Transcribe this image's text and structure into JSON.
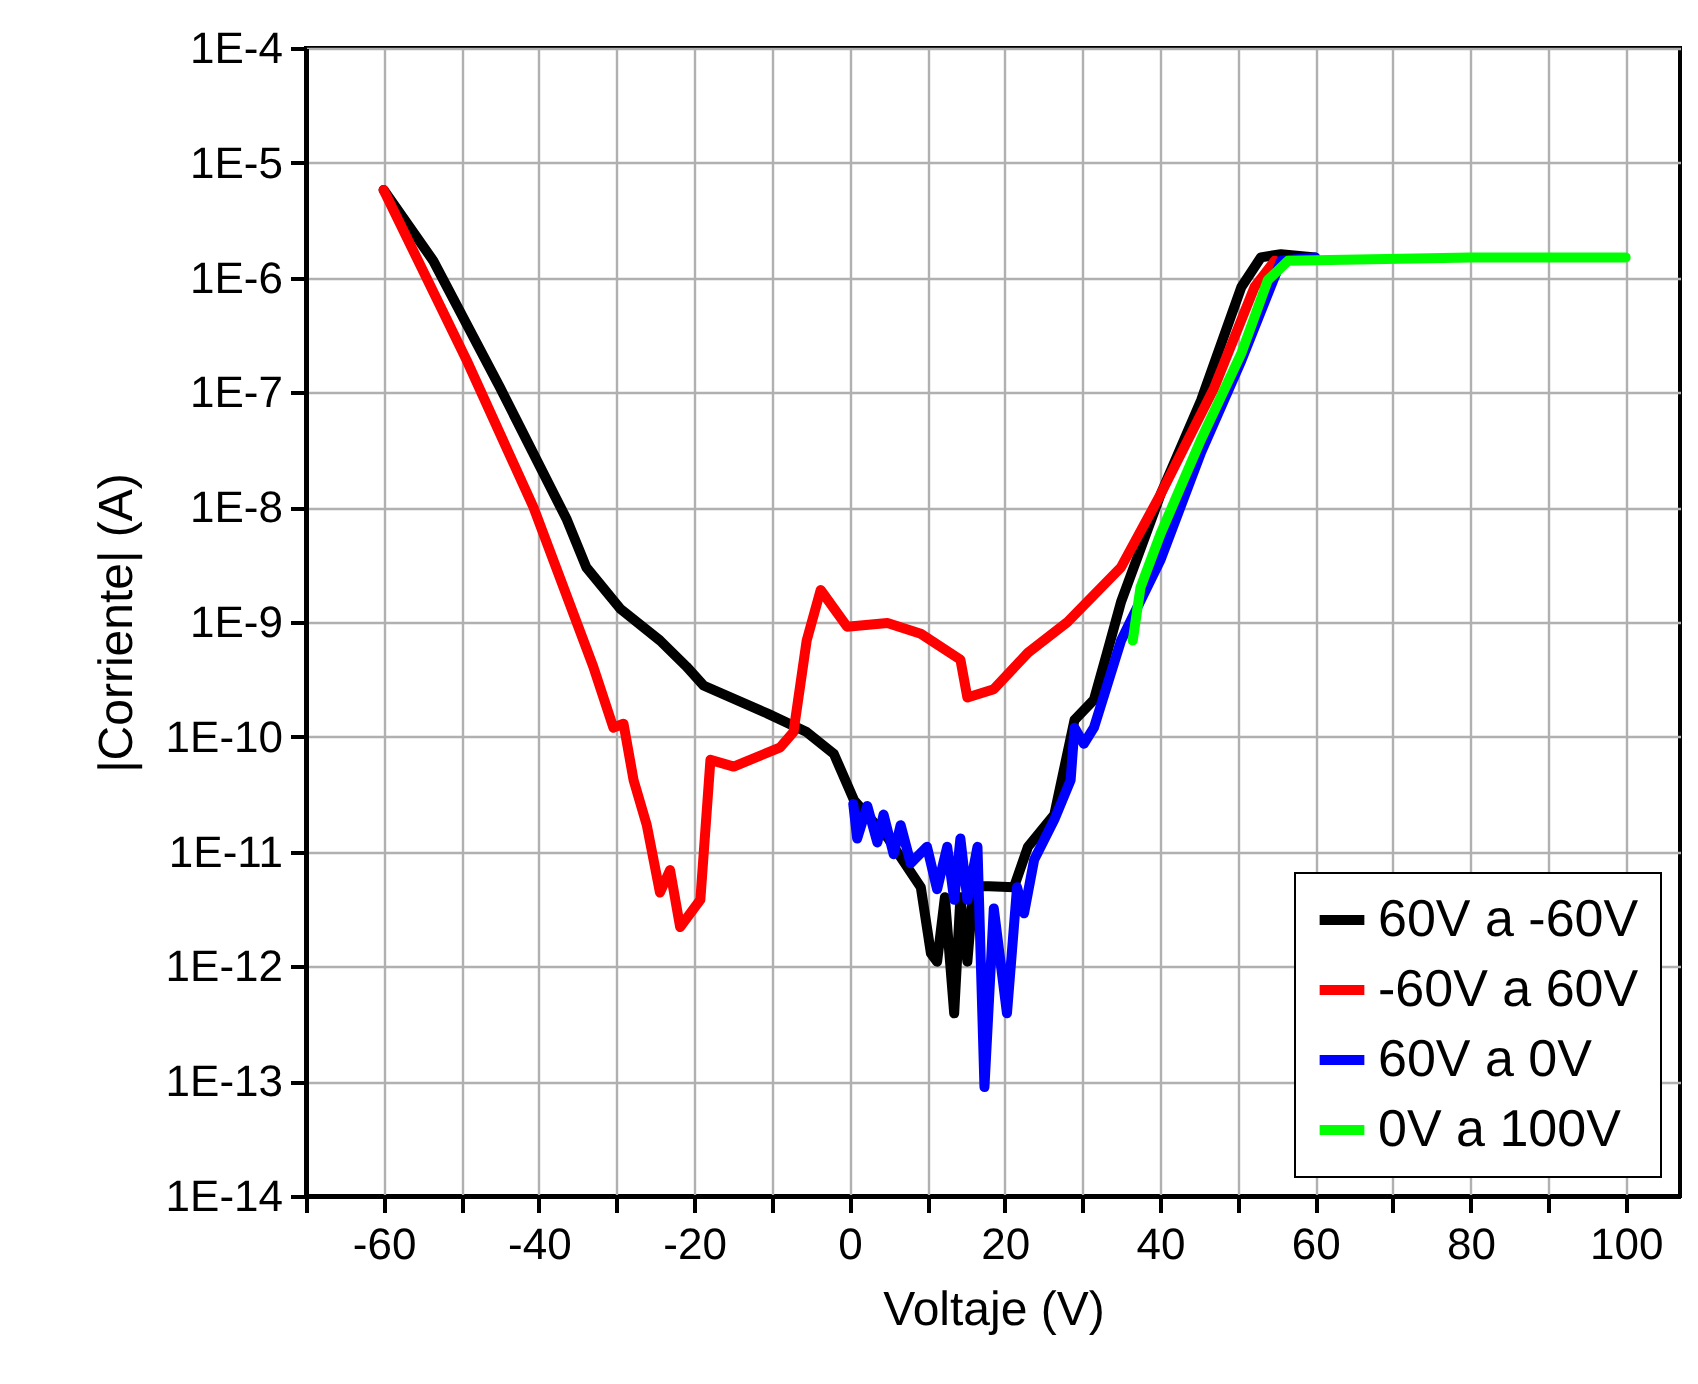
{
  "chart_data": {
    "type": "line",
    "xlabel": "Voltaje (V)",
    "ylabel": "|Corriente| (A)",
    "log": "y",
    "grid": true,
    "legend": "bottom right",
    "line_style": "solid",
    "marker": "none",
    "xlim": [
      -70,
      107
    ],
    "xticks": [
      {
        "value": -70,
        "label": null
      },
      -60,
      {
        "value": -50,
        "label": null
      },
      -40,
      {
        "value": -30,
        "label": null
      },
      -20,
      {
        "value": -10,
        "label": null
      },
      0,
      {
        "value": 10,
        "label": null
      },
      20,
      {
        "value": 30,
        "label": null
      },
      40,
      {
        "value": 50,
        "label": null
      },
      60,
      {
        "value": 70,
        "label": null
      },
      80,
      {
        "value": 90,
        "label": null
      },
      100
    ],
    "ylim": [
      1e-14,
      0.0001
    ],
    "yticks": [
      {
        "value": 1e-14,
        "label": "1E-14"
      },
      {
        "value": 1e-13,
        "label": "1E-13"
      },
      {
        "value": 1e-12,
        "label": "1E-12"
      },
      {
        "value": 1e-11,
        "label": "1E-11"
      },
      {
        "value": 1e-10,
        "label": "1E-10"
      },
      {
        "value": 1e-09,
        "label": "1E-9"
      },
      {
        "value": 1e-08,
        "label": "1E-8"
      },
      {
        "value": 1e-07,
        "label": "1E-7"
      },
      {
        "value": 1e-06,
        "label": "1E-6"
      },
      {
        "value": 1e-05,
        "label": "1E-5"
      },
      {
        "value": 0.0001,
        "label": "1E-4"
      }
    ],
    "series": [
      {
        "name": "60V a -60V",
        "color": "#000000",
        "x": [
          -60,
          -53.6,
          -45,
          -36.4,
          -33.9,
          -29.5,
          -24.4,
          -21,
          -18.8,
          -10.6,
          -5.5,
          -2,
          0.6,
          5,
          9.2,
          10.5,
          11.3,
          12.3,
          13.5,
          14.3,
          15.2,
          16,
          18,
          21.2,
          23,
          26.4,
          29,
          31.5,
          33.2,
          35,
          40.1,
          45.3,
          50.5,
          53,
          55.6,
          60
        ],
        "values": [
          5.8e-06,
          1.4e-06,
          1.1e-07,
          7.8e-09,
          3e-09,
          1.3e-09,
          6.9e-10,
          4.1e-10,
          2.8e-10,
          1.6e-10,
          1.1e-10,
          7.1e-11,
          2.8e-11,
          1.3e-11,
          4.9e-12,
          1.3e-12,
          1.1e-12,
          4e-12,
          3.9e-13,
          4e-12,
          1.1e-12,
          5e-12,
          5e-12,
          4.9e-12,
          1.1e-11,
          2.1e-11,
          1.4e-10,
          2.1e-10,
          5.4e-10,
          1.5e-09,
          1.3e-08,
          8.5e-08,
          8.3e-07,
          1.5e-06,
          1.6e-06,
          1.5e-06
        ]
      },
      {
        "name": "-60V a 60V",
        "color": "#ff0000",
        "x": [
          -60,
          -49.3,
          -40.7,
          -33,
          -30.4,
          -29.1,
          -27.8,
          -26.1,
          -24.4,
          -23.1,
          -21.8,
          -19.2,
          -17.9,
          -14.9,
          -8.9,
          -7.2,
          -5.5,
          -3.7,
          -0.3,
          4.9,
          9.2,
          14.3,
          15.2,
          18.6,
          23,
          28.1,
          35,
          40.1,
          47,
          52.2,
          54.8
        ],
        "values": [
          5.8e-06,
          1.9e-07,
          1e-08,
          4.1e-10,
          1.2e-10,
          1.3e-10,
          4.2e-11,
          1.7e-11,
          4.4e-12,
          6.9e-12,
          2.2e-12,
          3.8e-12,
          6.3e-11,
          5.5e-11,
          8.1e-11,
          1.1e-10,
          6.9e-10,
          1.9e-09,
          9.1e-10,
          9.8e-10,
          7.9e-10,
          4.7e-10,
          2.2e-10,
          2.6e-10,
          5.4e-10,
          1e-09,
          3e-09,
          1.3e-08,
          1.1e-07,
          8.3e-07,
          1.4e-06
        ]
      },
      {
        "name": "60V a 0V",
        "color": "#0000ff",
        "x": [
          0.5,
          1,
          2.3,
          3.6,
          4.4,
          5.7,
          6.6,
          7.9,
          10,
          11.3,
          12.6,
          13.5,
          14.3,
          15.2,
          16.5,
          17.4,
          18.6,
          20.3,
          21.6,
          22.5,
          23.8,
          26.4,
          28.5,
          29,
          30.2,
          31.5,
          35,
          40.1,
          45.3,
          50.5,
          55.6,
          60
        ],
        "values": [
          2.6e-11,
          1.3e-11,
          2.5e-11,
          1.2e-11,
          2.1e-11,
          9.5e-12,
          1.7e-11,
          7.9e-12,
          1.1e-11,
          4.7e-12,
          1.1e-11,
          3.8e-12,
          1.3e-11,
          3.8e-12,
          1.1e-11,
          8.9e-14,
          3.2e-12,
          3.9e-13,
          4.9e-12,
          2.9e-12,
          8.5e-12,
          1.9e-11,
          4.2e-11,
          1.2e-10,
          8.7e-11,
          1.2e-10,
          6.9e-10,
          3.5e-09,
          3e-08,
          1.9e-07,
          1.4e-06,
          1.5e-06
        ]
      },
      {
        "name": "0V a 100V",
        "color": "#00ff00",
        "x": [
          36.5,
          37.5,
          40.1,
          45.3,
          50.5,
          53.9,
          56.5,
          80,
          100
        ],
        "values": [
          6.9e-10,
          2e-09,
          5.9e-09,
          3.9e-08,
          2.2e-07,
          9.5e-07,
          1.4e-06,
          1.5e-06,
          1.5e-06
        ]
      }
    ]
  }
}
